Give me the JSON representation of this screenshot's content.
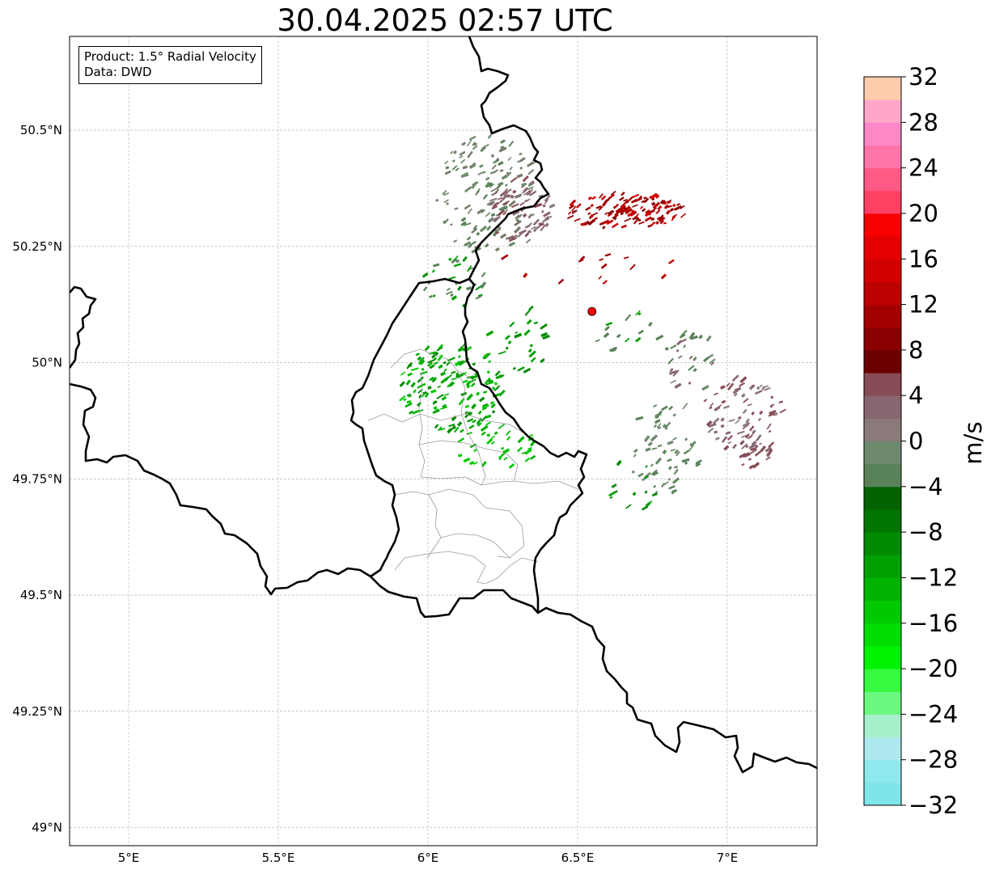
{
  "title": "30.04.2025 02:57 UTC",
  "info_box": {
    "product": "Product: 1.5° Radial Velocity",
    "data": "Data: DWD"
  },
  "map": {
    "lon_range": [
      4.8,
      7.3
    ],
    "lat_range": [
      48.95,
      50.7
    ],
    "lat_ticks": [
      {
        "value": 50.5,
        "label": "50.5°N"
      },
      {
        "value": 50.25,
        "label": "50.25°N"
      },
      {
        "value": 50.0,
        "label": "50°N"
      },
      {
        "value": 49.75,
        "label": "49.75°N"
      },
      {
        "value": 49.5,
        "label": "49.5°N"
      },
      {
        "value": 49.25,
        "label": "49.25°N"
      },
      {
        "value": 49.0,
        "label": "49°N"
      }
    ],
    "lon_ticks": [
      {
        "value": 5.0,
        "label": "5°E"
      },
      {
        "value": 5.5,
        "label": "5.5°E"
      },
      {
        "value": 6.0,
        "label": "6°E"
      },
      {
        "value": 6.5,
        "label": "6.5°E"
      },
      {
        "value": 7.0,
        "label": "7°E"
      }
    ],
    "radar_site": {
      "lon": 6.548,
      "lat": 50.11,
      "color": "#ff0000"
    },
    "border_color": "#000000",
    "admin_border_color": "#999999",
    "grid_color": "#bbbbbb"
  },
  "colorbar": {
    "unit": "m/s",
    "min": -32,
    "max": 32,
    "tick_values": [
      32,
      28,
      24,
      20,
      16,
      12,
      8,
      4,
      0,
      -4,
      -8,
      -12,
      -16,
      -20,
      -24,
      -28,
      -32
    ],
    "tick_labels": [
      "32",
      "28",
      "24",
      "20",
      "16",
      "12",
      "8",
      "4",
      "0",
      "−4",
      "−8",
      "−12",
      "−16",
      "−20",
      "−24",
      "−28",
      "−32"
    ],
    "colors": [
      "#7ee6ea",
      "#8ee9ec",
      "#ade9ee",
      "#a6f0cc",
      "#6af87f",
      "#37f93f",
      "#00f300",
      "#00de00",
      "#00c900",
      "#00b300",
      "#00a000",
      "#008a00",
      "#007500",
      "#006300",
      "#5a8259",
      "#6e8a6e",
      "#8a7a7a",
      "#886670",
      "#874c55",
      "#6b0000",
      "#8a0000",
      "#a30000",
      "#bc0000",
      "#d30000",
      "#e40000",
      "#f90000",
      "#ff4062",
      "#ff5a86",
      "#ff75a9",
      "#ff87c8",
      "#ffa6c9",
      "#ffccad"
    ]
  }
}
